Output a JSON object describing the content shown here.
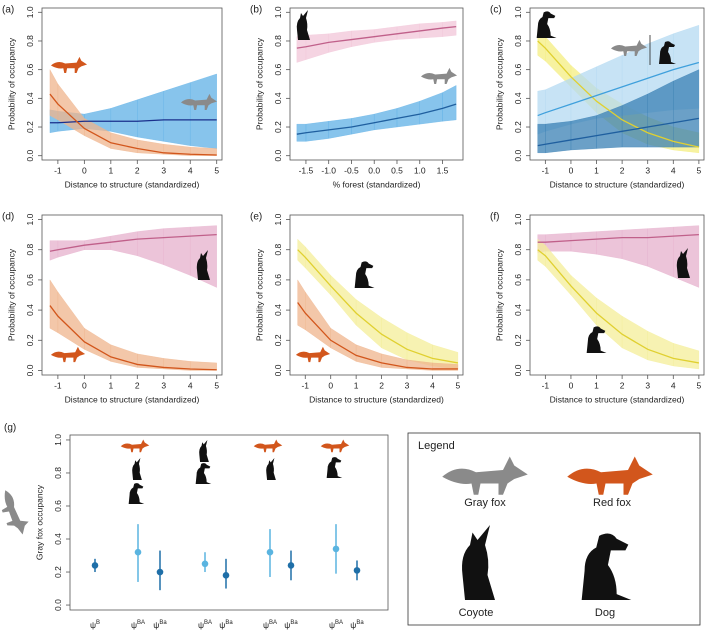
{
  "chart_data": [
    {
      "type": "line",
      "panel_label": "(a)",
      "xlabel": "Distance to structure (standardized)",
      "ylabel": "Probability of occupancy",
      "xlim": [
        -1.6,
        5.2
      ],
      "xticks": [
        -1,
        0,
        1,
        2,
        3,
        4,
        5
      ],
      "ylim": [
        -0.03,
        1.03
      ],
      "yticks": [
        {
          "value": 0,
          "label": "0.0"
        },
        0.2,
        0.4,
        0.6,
        0.8,
        {
          "value": 1,
          "label": "1.0"
        }
      ],
      "x": [
        -1.3,
        -1,
        0,
        1,
        2,
        3,
        4,
        5
      ],
      "series": [
        {
          "color": "#1a2f8c",
          "band": "#5fb0e6",
          "values": [
            0.23,
            0.23,
            0.24,
            0.24,
            0.24,
            0.25,
            0.25,
            0.25
          ],
          "lower": [
            0.16,
            0.17,
            0.19,
            0.17,
            0.13,
            0.1,
            0.07,
            0.05
          ],
          "upper": [
            0.32,
            0.31,
            0.29,
            0.33,
            0.39,
            0.45,
            0.51,
            0.57
          ]
        },
        {
          "color": "#d2561c",
          "band": "#efb48c",
          "values": [
            0.43,
            0.36,
            0.19,
            0.09,
            0.05,
            0.02,
            0.01,
            0.005
          ],
          "lower": [
            0.28,
            0.25,
            0.14,
            0.05,
            0.02,
            0.01,
            0,
            0
          ],
          "upper": [
            0.6,
            0.5,
            0.26,
            0.16,
            0.11,
            0.08,
            0.06,
            0.05
          ]
        }
      ]
    },
    {
      "type": "line",
      "panel_label": "(b)",
      "xlabel": "% forest (standardized)",
      "ylabel": "Probability of occupancy",
      "xlim": [
        -1.85,
        1.95
      ],
      "xticks": [
        -1.5,
        {
          "value": -1,
          "label": "-1.0"
        },
        -0.5,
        {
          "value": 0,
          "label": "0.0"
        },
        0.5,
        {
          "value": 1,
          "label": "1.0"
        },
        1.5
      ],
      "ylim": [
        -0.03,
        1.03
      ],
      "yticks": [
        {
          "value": 0,
          "label": "0.0"
        },
        0.2,
        0.4,
        0.6,
        0.8,
        {
          "value": 1,
          "label": "1.0"
        }
      ],
      "x": [
        -1.7,
        -1.5,
        -1,
        -0.5,
        0,
        0.5,
        1,
        1.5,
        1.8
      ],
      "series": [
        {
          "color": "#c0608a",
          "band": "#f2c6d8",
          "values": [
            0.75,
            0.76,
            0.79,
            0.81,
            0.83,
            0.85,
            0.87,
            0.89,
            0.9
          ],
          "lower": [
            0.65,
            0.67,
            0.72,
            0.76,
            0.79,
            0.81,
            0.82,
            0.83,
            0.84
          ],
          "upper": [
            0.83,
            0.84,
            0.85,
            0.87,
            0.88,
            0.9,
            0.92,
            0.93,
            0.94
          ]
        },
        {
          "color": "#1f5f9f",
          "band": "#5fb0e6",
          "values": [
            0.15,
            0.16,
            0.18,
            0.2,
            0.23,
            0.26,
            0.29,
            0.33,
            0.36
          ],
          "lower": [
            0.1,
            0.1,
            0.12,
            0.15,
            0.18,
            0.2,
            0.22,
            0.24,
            0.25
          ],
          "upper": [
            0.22,
            0.22,
            0.24,
            0.26,
            0.29,
            0.33,
            0.38,
            0.44,
            0.49
          ]
        }
      ]
    },
    {
      "type": "line",
      "panel_label": "(c)",
      "xlabel": "Distance to structure (standardized)",
      "ylabel": "Probability of occupancy",
      "xlim": [
        -1.6,
        5.2
      ],
      "xticks": [
        -1,
        0,
        1,
        2,
        3,
        4,
        5
      ],
      "ylim": [
        -0.03,
        1.03
      ],
      "yticks": [
        {
          "value": 0,
          "label": "0.0"
        },
        0.2,
        0.4,
        0.6,
        0.8,
        {
          "value": 1,
          "label": "1.0"
        }
      ],
      "x": [
        -1.3,
        -1,
        0,
        1,
        2,
        3,
        4,
        5
      ],
      "series": [
        {
          "color": "#e0d030",
          "band": "#f4ee80",
          "values": [
            0.8,
            0.75,
            0.55,
            0.38,
            0.25,
            0.16,
            0.1,
            0.06
          ],
          "lower": [
            0.7,
            0.66,
            0.48,
            0.3,
            0.16,
            0.08,
            0.04,
            0.02
          ],
          "upper": [
            0.88,
            0.83,
            0.63,
            0.47,
            0.36,
            0.27,
            0.2,
            0.16
          ]
        },
        {
          "color": "#3fa0dc",
          "band": "#b4daf2",
          "values": [
            0.28,
            0.3,
            0.36,
            0.42,
            0.48,
            0.54,
            0.6,
            0.65
          ],
          "lower": [
            0.15,
            0.17,
            0.22,
            0.26,
            0.28,
            0.3,
            0.32,
            0.33
          ],
          "upper": [
            0.45,
            0.46,
            0.54,
            0.62,
            0.7,
            0.78,
            0.85,
            0.91
          ]
        },
        {
          "color": "#1f5f9f",
          "band": "#3a80b4",
          "values": [
            0.07,
            0.08,
            0.11,
            0.14,
            0.17,
            0.2,
            0.23,
            0.26
          ],
          "lower": [
            0.02,
            0.02,
            0.04,
            0.05,
            0.06,
            0.06,
            0.06,
            0.06
          ],
          "upper": [
            0.22,
            0.22,
            0.24,
            0.28,
            0.35,
            0.43,
            0.52,
            0.6
          ]
        }
      ]
    },
    {
      "type": "line",
      "panel_label": "(d)",
      "xlabel": "Distance to structure (standardized)",
      "ylabel": "Probability of occupancy",
      "xlim": [
        -1.6,
        5.2
      ],
      "xticks": [
        -1,
        0,
        1,
        2,
        3,
        4,
        5
      ],
      "ylim": [
        -0.03,
        1.03
      ],
      "yticks": [
        {
          "value": 0,
          "label": "0.0"
        },
        0.2,
        0.4,
        0.6,
        0.8,
        {
          "value": 1,
          "label": "1.0"
        }
      ],
      "x": [
        -1.3,
        -1,
        0,
        1,
        2,
        3,
        4,
        5
      ],
      "series": [
        {
          "color": "#c0608a",
          "band": "#e6b0cc",
          "values": [
            0.79,
            0.8,
            0.83,
            0.85,
            0.87,
            0.88,
            0.89,
            0.9
          ],
          "lower": [
            0.73,
            0.75,
            0.8,
            0.8,
            0.76,
            0.7,
            0.63,
            0.55
          ],
          "upper": [
            0.86,
            0.86,
            0.86,
            0.89,
            0.92,
            0.94,
            0.95,
            0.96
          ]
        },
        {
          "color": "#d2561c",
          "band": "#efb48c",
          "values": [
            0.43,
            0.36,
            0.19,
            0.09,
            0.04,
            0.02,
            0.01,
            0.005
          ],
          "lower": [
            0.28,
            0.25,
            0.14,
            0.06,
            0.02,
            0.01,
            0,
            0
          ],
          "upper": [
            0.6,
            0.52,
            0.28,
            0.17,
            0.11,
            0.08,
            0.06,
            0.05
          ]
        }
      ]
    },
    {
      "type": "line",
      "panel_label": "(e)",
      "xlabel": "Distance to structure (standardized)",
      "ylabel": "Probability of occupancy",
      "xlim": [
        -1.6,
        5.2
      ],
      "xticks": [
        -1,
        0,
        1,
        2,
        3,
        4,
        5
      ],
      "ylim": [
        -0.03,
        1.03
      ],
      "yticks": [
        {
          "value": 0,
          "label": "0.0"
        },
        0.2,
        0.4,
        0.6,
        0.8,
        {
          "value": 1,
          "label": "1.0"
        }
      ],
      "x": [
        -1.3,
        -1,
        0,
        1,
        2,
        3,
        4,
        5
      ],
      "series": [
        {
          "color": "#e0d030",
          "band": "#f4ee98",
          "values": [
            0.8,
            0.75,
            0.56,
            0.38,
            0.24,
            0.14,
            0.08,
            0.05
          ],
          "lower": [
            0.73,
            0.68,
            0.5,
            0.3,
            0.15,
            0.07,
            0.03,
            0.01
          ],
          "upper": [
            0.87,
            0.82,
            0.63,
            0.47,
            0.35,
            0.25,
            0.17,
            0.12
          ]
        },
        {
          "color": "#d2561c",
          "band": "#efb48c",
          "values": [
            0.45,
            0.38,
            0.2,
            0.1,
            0.05,
            0.02,
            0.01,
            0.01
          ],
          "lower": [
            0.3,
            0.27,
            0.15,
            0.06,
            0.02,
            0.01,
            0,
            0
          ],
          "upper": [
            0.6,
            0.52,
            0.28,
            0.17,
            0.11,
            0.07,
            0.05,
            0.04
          ]
        }
      ]
    },
    {
      "type": "line",
      "panel_label": "(f)",
      "xlabel": "Distance to structure (standardized)",
      "ylabel": "Probability of occupancy",
      "xlim": [
        -1.6,
        5.2
      ],
      "xticks": [
        -1,
        0,
        1,
        2,
        3,
        4,
        5
      ],
      "ylim": [
        -0.03,
        1.03
      ],
      "yticks": [
        {
          "value": 0,
          "label": "0.0"
        },
        0.2,
        0.4,
        0.6,
        0.8,
        {
          "value": 1,
          "label": "1.0"
        }
      ],
      "x": [
        -1.3,
        -1,
        0,
        1,
        2,
        3,
        4,
        5
      ],
      "series": [
        {
          "color": "#c0608a",
          "band": "#e6b0cc",
          "values": [
            0.85,
            0.85,
            0.86,
            0.87,
            0.88,
            0.88,
            0.89,
            0.9
          ],
          "lower": [
            0.78,
            0.79,
            0.79,
            0.77,
            0.74,
            0.69,
            0.62,
            0.55
          ],
          "upper": [
            0.9,
            0.9,
            0.91,
            0.92,
            0.93,
            0.94,
            0.95,
            0.96
          ]
        },
        {
          "color": "#e0d030",
          "band": "#f4ee98",
          "values": [
            0.8,
            0.76,
            0.56,
            0.38,
            0.24,
            0.14,
            0.08,
            0.05
          ],
          "lower": [
            0.73,
            0.69,
            0.5,
            0.3,
            0.15,
            0.07,
            0.03,
            0.01
          ],
          "upper": [
            0.87,
            0.83,
            0.63,
            0.48,
            0.36,
            0.26,
            0.18,
            0.13
          ]
        }
      ]
    },
    {
      "type": "errorbar",
      "panel_label": "(g)",
      "ylabel": "Gray fox occupancy",
      "ylim": [
        -0.03,
        1.03
      ],
      "yticks": [
        {
          "value": 0,
          "label": "0.0"
        },
        0.2,
        0.4,
        0.6,
        0.8,
        {
          "value": 1,
          "label": "1.0"
        }
      ],
      "categories": [
        "ψB",
        "ψBA",
        "ψBa",
        "ψBA",
        "ψBa",
        "ψBA",
        "ψBa",
        "ψBA",
        "ψBa"
      ],
      "values": [
        0.24,
        0.32,
        0.2,
        0.25,
        0.18,
        0.32,
        0.24,
        0.34,
        0.21
      ],
      "lower": [
        0.2,
        0.14,
        0.09,
        0.2,
        0.1,
        0.17,
        0.15,
        0.19,
        0.15
      ],
      "upper": [
        0.28,
        0.49,
        0.33,
        0.32,
        0.28,
        0.46,
        0.33,
        0.49,
        0.27
      ],
      "colors": [
        "#1f6fa8",
        "#5ab4e0",
        "#1f6fa8",
        "#5ab4e0",
        "#1f6fa8",
        "#5ab4e0",
        "#1f6fa8",
        "#5ab4e0",
        "#1f6fa8"
      ]
    }
  ],
  "legend": {
    "title": "Legend",
    "items": [
      "Gray fox",
      "Red fox",
      "Coyote",
      "Dog"
    ]
  }
}
